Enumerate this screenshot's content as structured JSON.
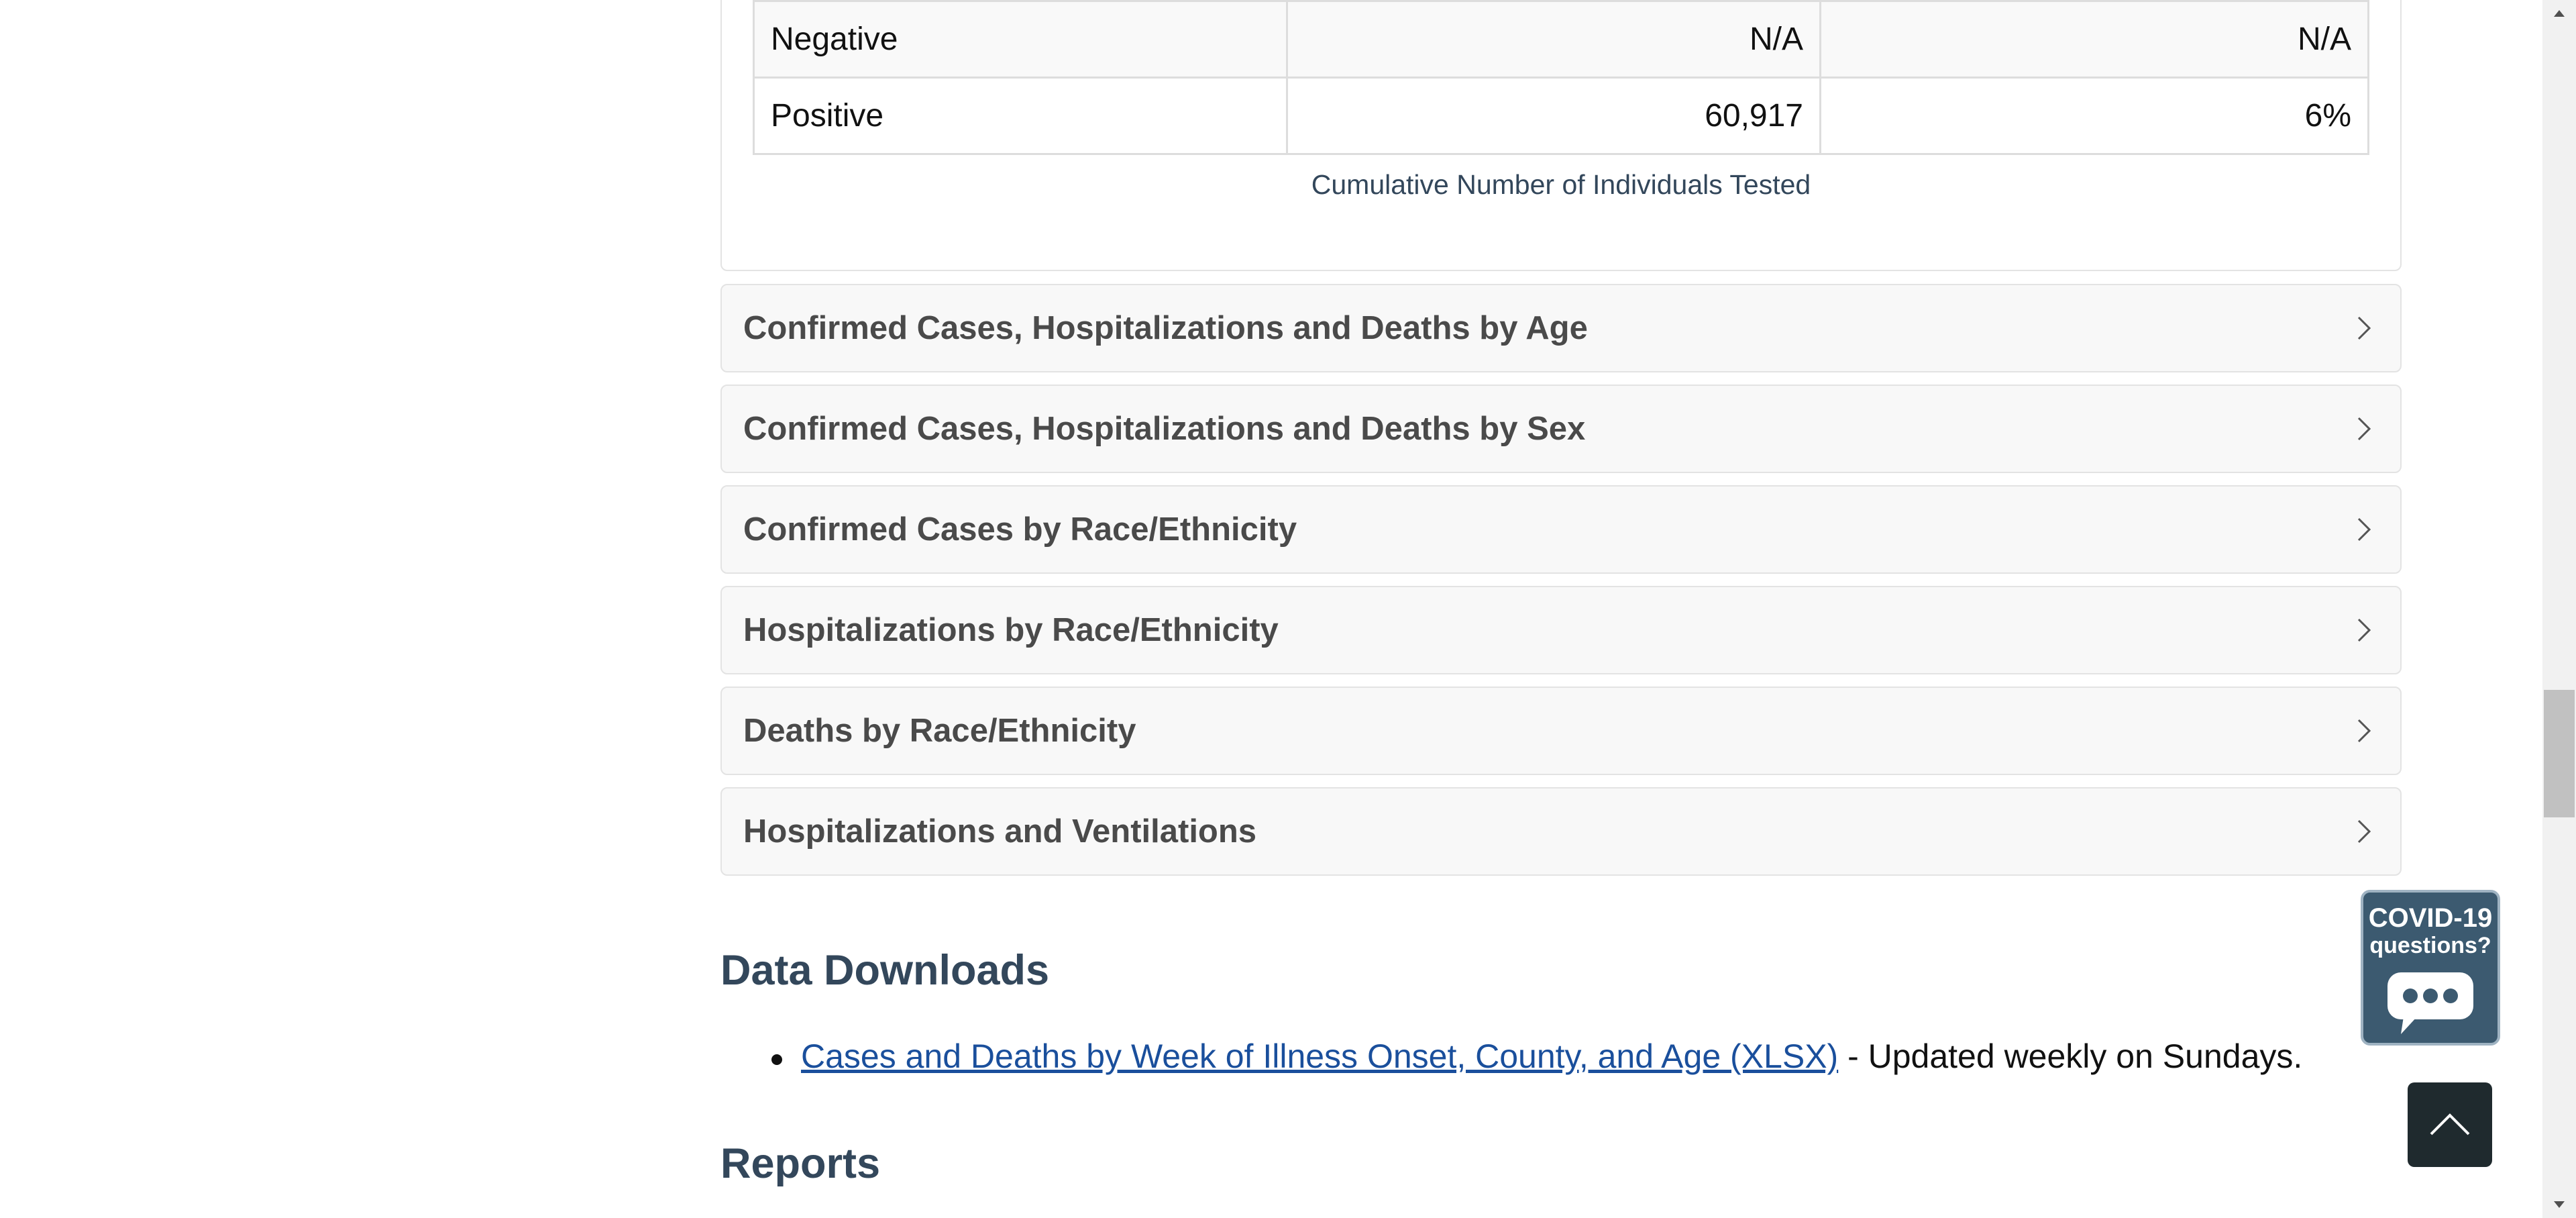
{
  "test_table": {
    "rows": [
      {
        "label": "Negative",
        "count": "N/A",
        "percent": "N/A"
      },
      {
        "label": "Positive",
        "count": "60,917",
        "percent": "6%"
      }
    ],
    "caption": "Cumulative Number of Individuals Tested"
  },
  "accordions": [
    {
      "title": "Confirmed Cases, Hospitalizations and Deaths by Age",
      "icon": "chevron-right-icon"
    },
    {
      "title": "Confirmed Cases, Hospitalizations and Deaths by Sex",
      "icon": "chevron-right-icon"
    },
    {
      "title": "Confirmed Cases by Race/Ethnicity",
      "icon": "chevron-right-icon"
    },
    {
      "title": "Hospitalizations by Race/Ethnicity",
      "icon": "chevron-right-icon"
    },
    {
      "title": "Deaths by Race/Ethnicity",
      "icon": "chevron-right-icon"
    },
    {
      "title": "Hospitalizations and Ventilations",
      "icon": "chevron-right-icon"
    }
  ],
  "downloads": {
    "heading": "Data Downloads",
    "items": [
      {
        "link_text": "Cases and Deaths by Week of Illness Onset, County, and Age (XLSX)",
        "suffix": " - Updated weekly on Sundays."
      }
    ]
  },
  "reports": {
    "heading": "Reports"
  },
  "chat_widget": {
    "line1": "COVID-19",
    "line2": "questions?",
    "icon": "chat-bubble-icon"
  },
  "back_to_top": {
    "icon": "chevron-up-icon"
  },
  "colors": {
    "heading": "#33475b",
    "link": "#1a4f9c",
    "accordion_bg": "#f8f8f8",
    "badge_bg": "#3c5a70"
  }
}
